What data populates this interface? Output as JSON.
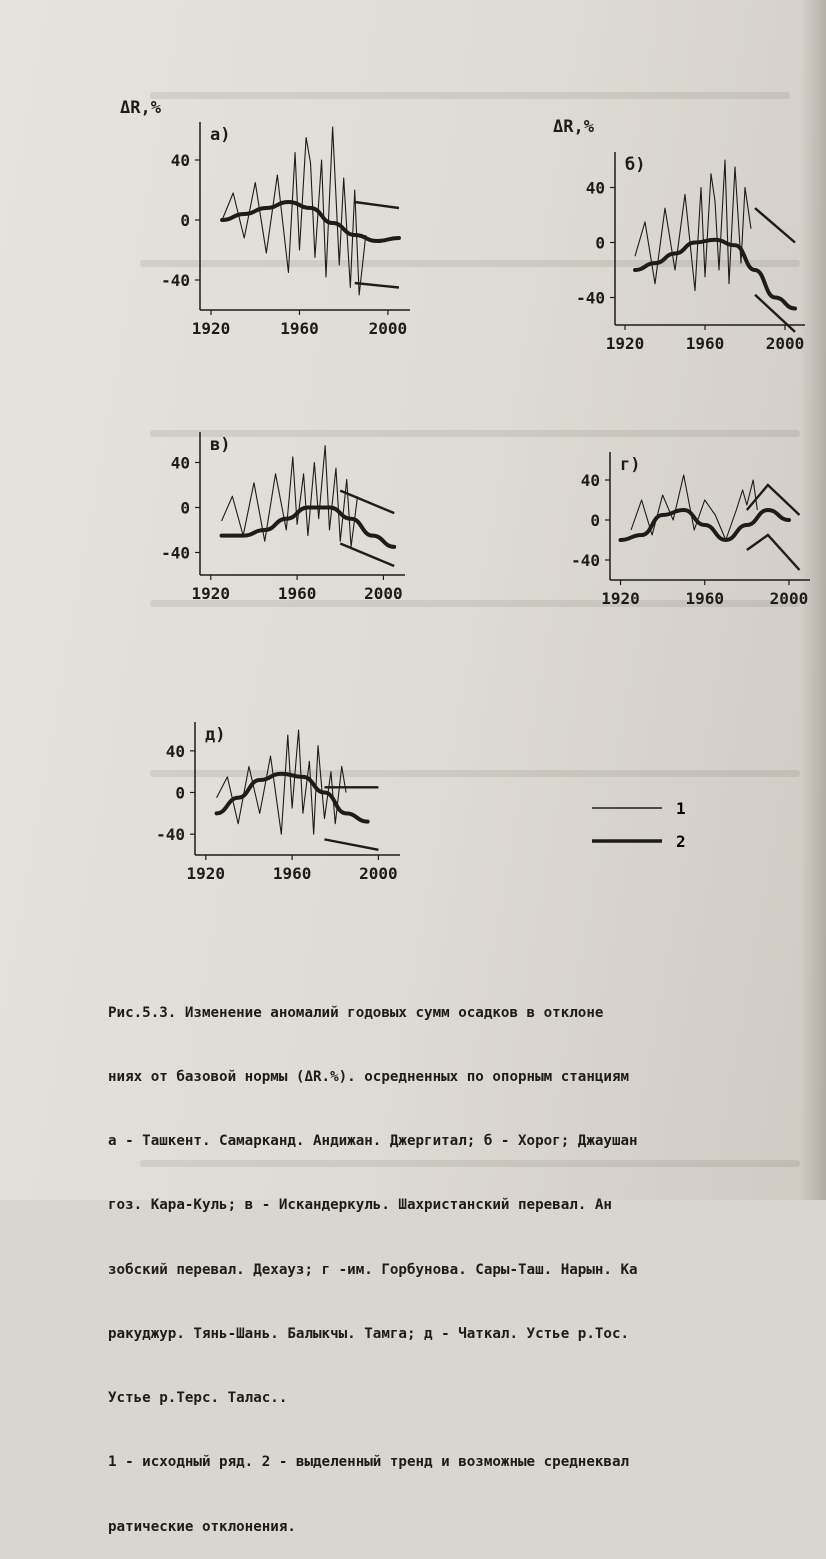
{
  "chart_data": [
    {
      "type": "line",
      "panel_label": "а)",
      "ylabel": "ΔR,%",
      "yticks": [
        "40",
        "0",
        "-40"
      ],
      "xticks": [
        "1920",
        "1960",
        "2000"
      ],
      "ylim": [
        -60,
        60
      ],
      "xlim": [
        1915,
        2010
      ],
      "observed": {
        "x": [
          1925,
          1930,
          1935,
          1940,
          1945,
          1950,
          1955,
          1958,
          1960,
          1963,
          1965,
          1967,
          1970,
          1972,
          1975,
          1978,
          1980,
          1983,
          1985,
          1987,
          1990
        ],
        "y": [
          0,
          18,
          -12,
          25,
          -22,
          30,
          -35,
          45,
          -20,
          55,
          38,
          -25,
          40,
          -38,
          62,
          -30,
          28,
          -45,
          20,
          -50,
          -10
        ]
      },
      "trend": {
        "x": [
          1925,
          1935,
          1945,
          1955,
          1965,
          1975,
          1985,
          1995,
          2005
        ],
        "y": [
          0,
          4,
          8,
          12,
          8,
          -2,
          -10,
          -14,
          -12
        ]
      },
      "std_upper": {
        "x": [
          1985,
          2005
        ],
        "y": [
          12,
          8
        ]
      },
      "std_lower": {
        "x": [
          1985,
          2005
        ],
        "y": [
          -42,
          -45
        ]
      }
    },
    {
      "type": "line",
      "panel_label": "б)",
      "ylabel": "ΔR,%",
      "yticks": [
        "40",
        "0",
        "-40"
      ],
      "xticks": [
        "1920",
        "1960",
        "2000"
      ],
      "ylim": [
        -60,
        60
      ],
      "xlim": [
        1915,
        2010
      ],
      "observed": {
        "x": [
          1925,
          1930,
          1935,
          1940,
          1945,
          1950,
          1955,
          1958,
          1960,
          1963,
          1965,
          1967,
          1970,
          1972,
          1975,
          1978,
          1980,
          1983
        ],
        "y": [
          -10,
          15,
          -30,
          25,
          -20,
          35,
          -35,
          40,
          -25,
          50,
          30,
          -20,
          60,
          -30,
          55,
          -15,
          40,
          10
        ]
      },
      "trend": {
        "x": [
          1925,
          1935,
          1945,
          1955,
          1965,
          1975,
          1985,
          1995,
          2005
        ],
        "y": [
          -20,
          -15,
          -8,
          0,
          2,
          -2,
          -20,
          -40,
          -48
        ]
      },
      "std_upper": {
        "x": [
          1985,
          2005
        ],
        "y": [
          25,
          0
        ]
      },
      "std_lower": {
        "x": [
          1985,
          2005
        ],
        "y": [
          -38,
          -65
        ]
      }
    },
    {
      "type": "line",
      "panel_label": "в)",
      "ylabel": "",
      "yticks": [
        "40",
        "0",
        "-40"
      ],
      "xticks": [
        "1920",
        "1960",
        "2000"
      ],
      "ylim": [
        -60,
        60
      ],
      "xlim": [
        1915,
        2010
      ],
      "observed": {
        "x": [
          1925,
          1930,
          1935,
          1940,
          1945,
          1950,
          1955,
          1958,
          1960,
          1963,
          1965,
          1968,
          1970,
          1973,
          1975,
          1978,
          1980,
          1983,
          1985,
          1988
        ],
        "y": [
          -12,
          10,
          -25,
          22,
          -30,
          30,
          -20,
          45,
          -15,
          30,
          -25,
          40,
          -10,
          55,
          -20,
          35,
          -30,
          25,
          -35,
          10
        ]
      },
      "trend": {
        "x": [
          1925,
          1935,
          1945,
          1955,
          1965,
          1975,
          1985,
          1995,
          2005
        ],
        "y": [
          -25,
          -25,
          -20,
          -10,
          0,
          0,
          -10,
          -25,
          -35
        ]
      },
      "std_upper": {
        "x": [
          1980,
          2005
        ],
        "y": [
          15,
          -5
        ]
      },
      "std_lower": {
        "x": [
          1980,
          2005
        ],
        "y": [
          -32,
          -52
        ]
      }
    },
    {
      "type": "line",
      "panel_label": "г)",
      "ylabel": "",
      "yticks": [
        "40",
        "0",
        "-40"
      ],
      "xticks": [
        "1920",
        "1960",
        "2000"
      ],
      "ylim": [
        -60,
        60
      ],
      "xlim": [
        1915,
        2010
      ],
      "observed": {
        "x": [
          1925,
          1930,
          1935,
          1940,
          1945,
          1950,
          1955,
          1960,
          1965,
          1970,
          1975,
          1978,
          1980,
          1983,
          1985
        ],
        "y": [
          -10,
          20,
          -15,
          25,
          0,
          45,
          -10,
          20,
          5,
          -20,
          10,
          30,
          15,
          40,
          10
        ]
      },
      "trend": {
        "x": [
          1920,
          1930,
          1940,
          1950,
          1960,
          1970,
          1980,
          1990,
          2000
        ],
        "y": [
          -20,
          -15,
          5,
          10,
          -5,
          -20,
          -5,
          10,
          0
        ]
      },
      "std_upper": {
        "x": [
          1980,
          1990,
          2005
        ],
        "y": [
          10,
          35,
          5
        ]
      },
      "std_lower": {
        "x": [
          1980,
          1990,
          2005
        ],
        "y": [
          -30,
          -15,
          -50
        ]
      }
    },
    {
      "type": "line",
      "panel_label": "д)",
      "ylabel": "",
      "yticks": [
        "40",
        "0",
        "-40"
      ],
      "xticks": [
        "1920",
        "1960",
        "2000"
      ],
      "ylim": [
        -60,
        60
      ],
      "xlim": [
        1915,
        2010
      ],
      "observed": {
        "x": [
          1925,
          1930,
          1935,
          1940,
          1945,
          1950,
          1955,
          1958,
          1960,
          1963,
          1965,
          1968,
          1970,
          1972,
          1975,
          1978,
          1980,
          1983,
          1985
        ],
        "y": [
          -5,
          15,
          -30,
          25,
          -20,
          35,
          -40,
          55,
          -15,
          60,
          -20,
          30,
          -40,
          45,
          -25,
          20,
          -30,
          25,
          0
        ]
      },
      "trend": {
        "x": [
          1925,
          1935,
          1945,
          1955,
          1965,
          1975,
          1985,
          1995
        ],
        "y": [
          -20,
          -5,
          12,
          18,
          15,
          0,
          -20,
          -28
        ]
      },
      "std_upper": {
        "x": [
          1975,
          2000
        ],
        "y": [
          5,
          5
        ]
      },
      "std_lower": {
        "x": [
          1975,
          2000
        ],
        "y": [
          -45,
          -55
        ]
      }
    }
  ],
  "legend": {
    "items": [
      {
        "label": "1",
        "style": "thin"
      },
      {
        "label": "2",
        "style": "thick"
      }
    ]
  },
  "caption": {
    "lines": [
      "Рис.5.3.  Изменение  аномалий годовых  сумм осадков в отклоне",
      "ниях от базовой нормы (ΔR.%).  осредненных по опорным станциям",
      "а - Ташкент. Самарканд. Андижан. Джергитал; б - Хорог; Джаушан",
      "гоз.  Кара-Куль; в - Искандеркуль.  Шахристанский перевал. Ан",
      "зобский перевал. Дехауз; г -им. Горбунова. Сары-Таш. Нарын. Ка",
      "ракуджур.  Тянь-Шань.  Балыкчы. Тамга; д - Чаткал. Устье р.Тос.",
      "Устье р.Терс. Талас..",
      "1 - исходный ряд.   2 - выделенный тренд и возможные среднеквал",
      "ратические отклонения."
    ]
  },
  "colors": {
    "ink": "#1d1c1a",
    "paper": "#e2dfd9"
  }
}
